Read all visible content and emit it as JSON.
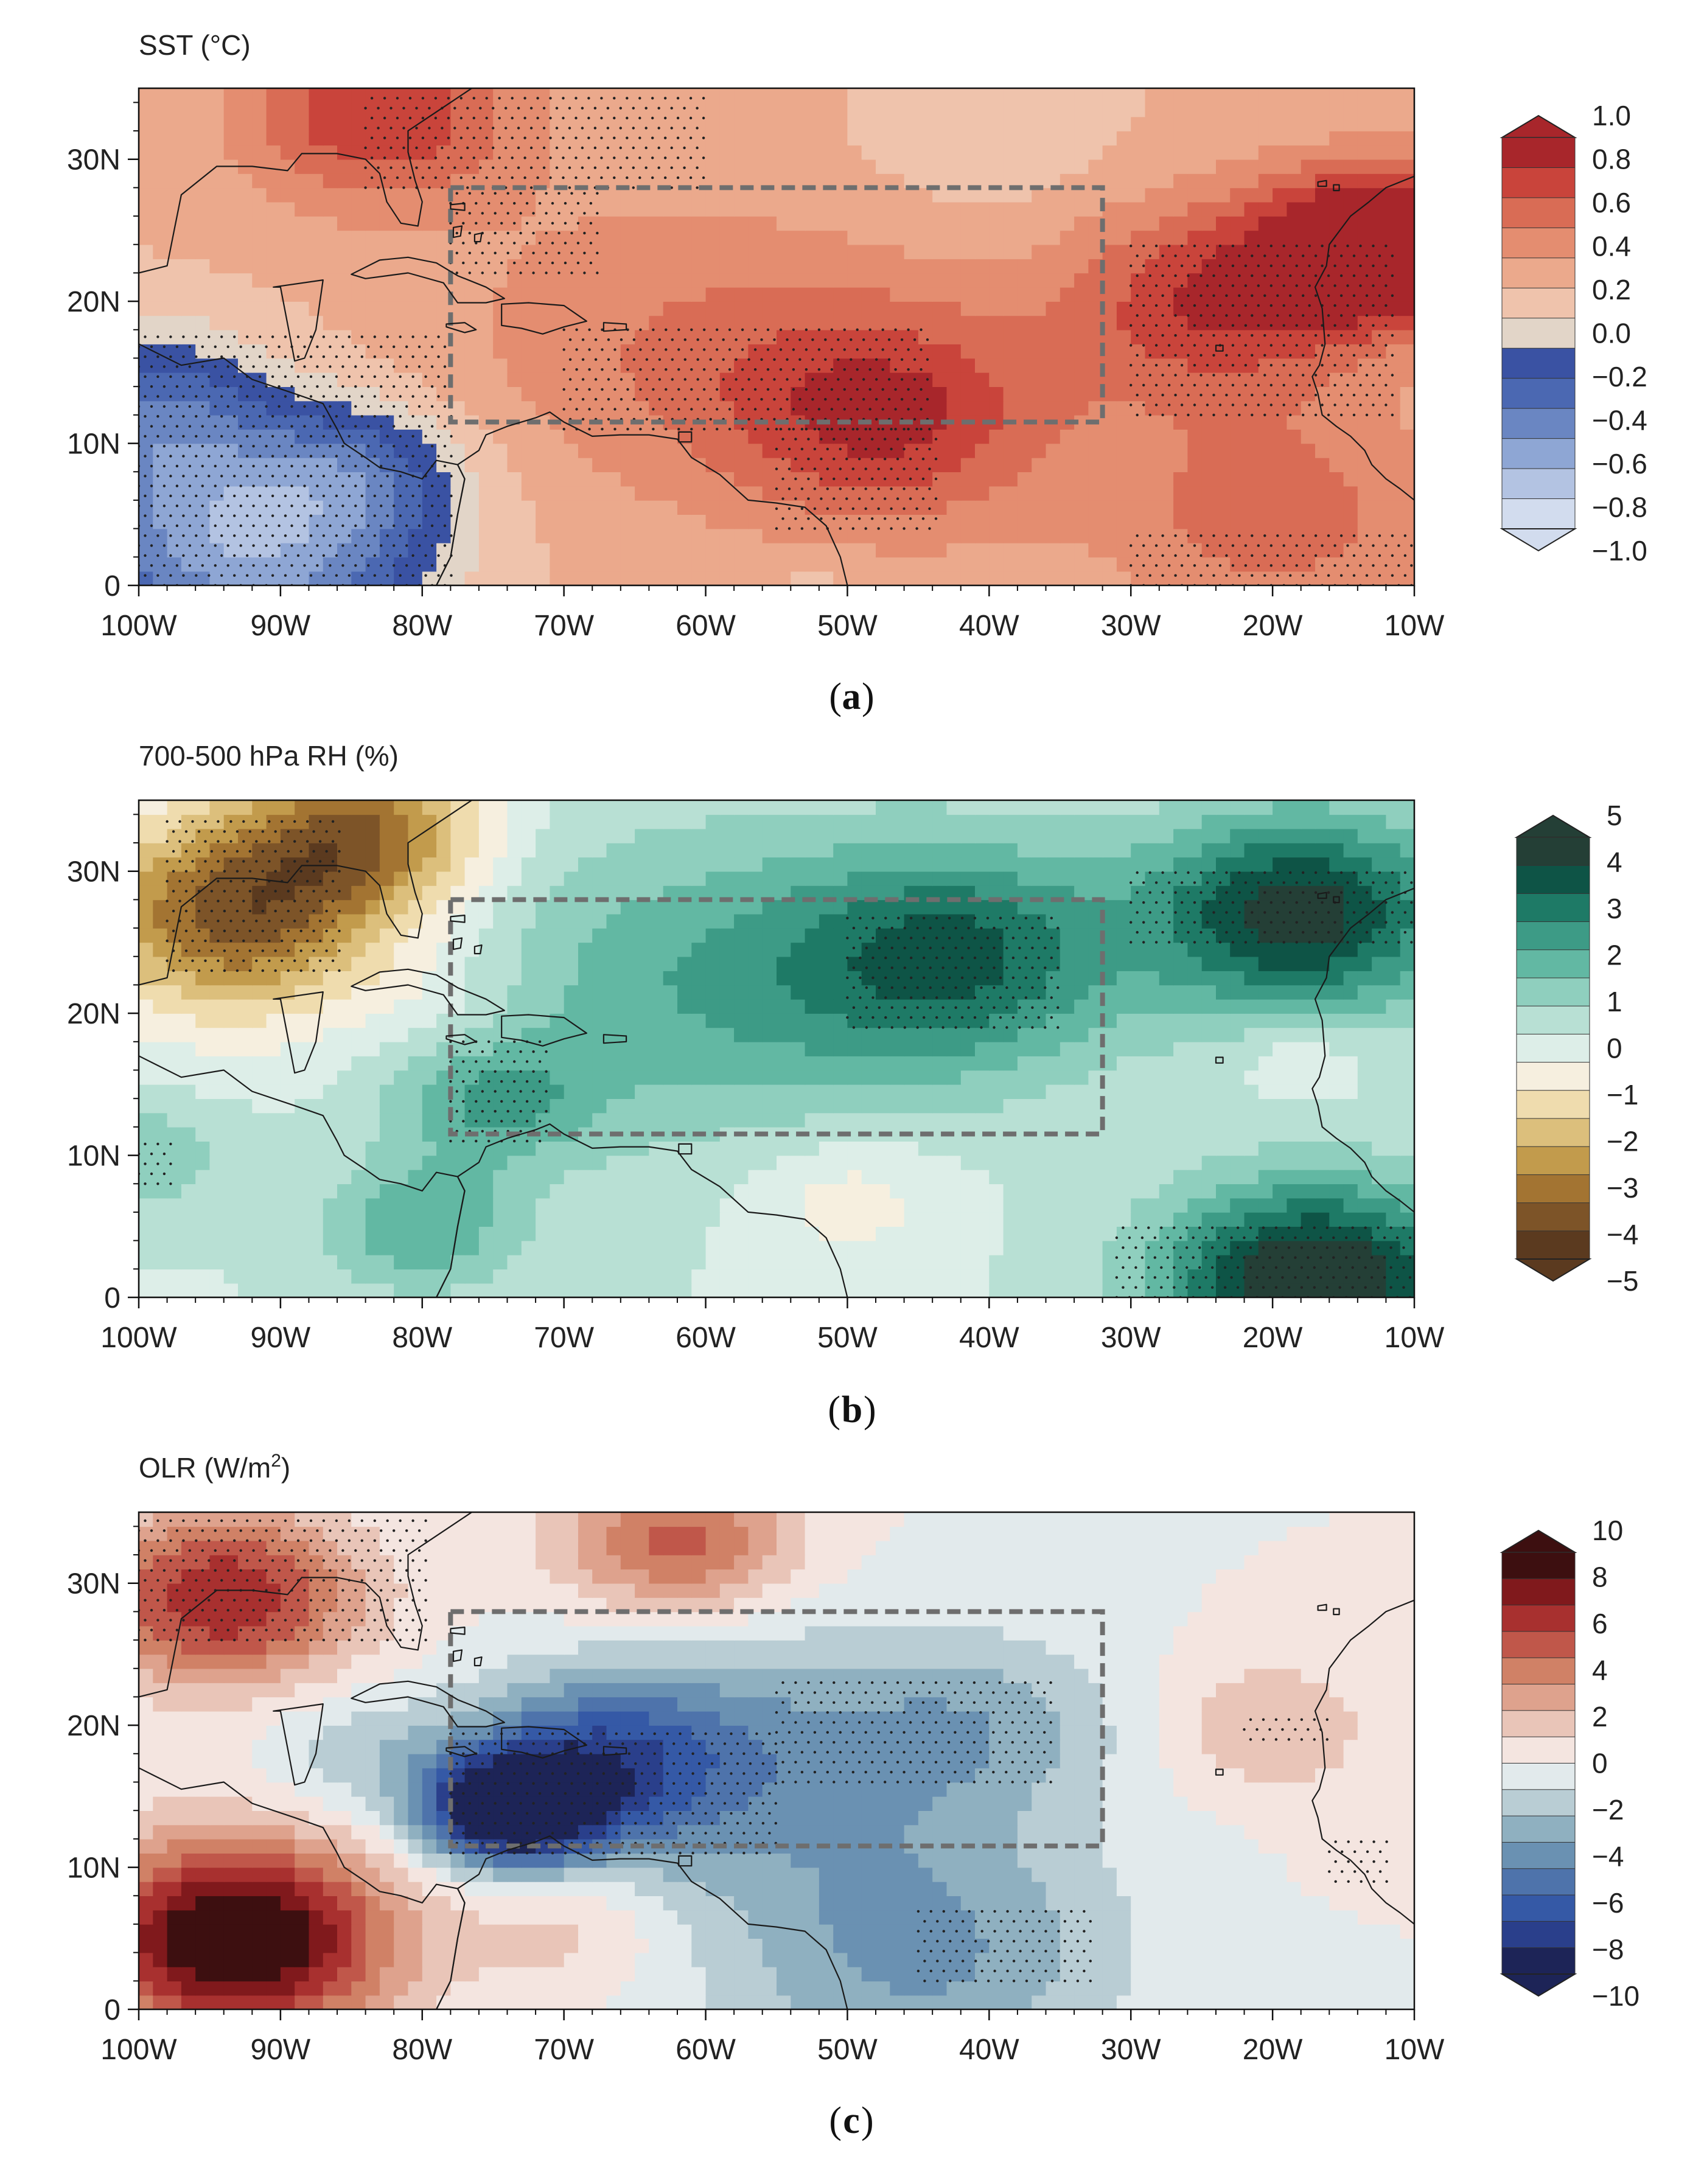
{
  "colors": {
    "sst_neg": [
      "#3a52a3",
      "#4b68b2",
      "#6a86c2",
      "#8ea6d4",
      "#b3c3e2",
      "#d2dcee"
    ],
    "sst_pos": [
      "#e2d5c8",
      "#efc3ac",
      "#eba98c",
      "#e48d70",
      "#d96c55",
      "#c9443b",
      "#a8262b"
    ],
    "rh_neg": [
      "#f6efdf",
      "#efdcae",
      "#dcbf7c",
      "#c29b4c",
      "#a37432",
      "#7d5428",
      "#5b3a1f"
    ],
    "rh_pos": [
      "#ddeee8",
      "#b8e0d4",
      "#8fcfbe",
      "#62b8a3",
      "#3d9b86",
      "#1e7a66",
      "#0e5446",
      "#243f36"
    ],
    "olr_neg": [
      "#e2eaec",
      "#b9cdd4",
      "#8fb0c0",
      "#6a91b2",
      "#4e73ab",
      "#3559a6",
      "#2a3f8b",
      "#1d2457"
    ],
    "olr_pos": [
      "#f4e5e0",
      "#e9c5b8",
      "#dea28d",
      "#d08166",
      "#c0574a",
      "#a8302f",
      "#80191c",
      "#3d0f10"
    ],
    "box": "#6e6e6e",
    "coast": "#1a1a1a",
    "stipple": "#222222"
  },
  "panels": [
    {
      "id": "a",
      "label": "a",
      "chart_data": {
        "type": "heatmap",
        "title": "SST (°C)",
        "variable": "SST",
        "units": "°C",
        "x_range": [
          -100,
          -10
        ],
        "y_range": [
          0,
          35
        ],
        "x_ticks": [
          "100W",
          "90W",
          "80W",
          "70W",
          "60W",
          "50W",
          "40W",
          "30W",
          "20W",
          "10W"
        ],
        "y_ticks": [
          "0",
          "10N",
          "20N",
          "30N"
        ],
        "colorbar_ticks": [
          "1.0",
          "0.8",
          "0.6",
          "0.4",
          "0.2",
          "0.0",
          "−0.2",
          "−0.4",
          "−0.6",
          "−0.8",
          "−1.0"
        ],
        "colorbar_range": [
          -1.0,
          1.0
        ],
        "box": {
          "lon": [
            -78,
            -32
          ],
          "lat": [
            11.5,
            28
          ]
        },
        "anomalies": [
          {
            "lon": -92,
            "lat": 3,
            "value": -0.95,
            "r": 10
          },
          {
            "lon": -100,
            "lat": 12,
            "value": -0.55,
            "r": 8
          },
          {
            "lon": -84,
            "lat": 8,
            "value": -0.35,
            "r": 6
          },
          {
            "lon": -83,
            "lat": 33,
            "value": 0.55,
            "r": 8
          },
          {
            "lon": -47,
            "lat": 12,
            "value": 0.55,
            "r": 10
          },
          {
            "lon": -62,
            "lat": 17,
            "value": 0.25,
            "r": 14
          },
          {
            "lon": -12,
            "lat": 24,
            "value": 0.95,
            "r": 7
          },
          {
            "lon": -24,
            "lat": 20,
            "value": 0.55,
            "r": 9
          },
          {
            "lon": -40,
            "lat": 32,
            "value": -0.15,
            "r": 7
          },
          {
            "lon": -20,
            "lat": 5,
            "value": 0.35,
            "r": 10
          },
          {
            "lon": -52,
            "lat": 1,
            "value": -0.1,
            "r": 3
          }
        ],
        "stipple_regions": [
          {
            "lon": [
              -100,
              -78
            ],
            "lat": [
              0,
              18
            ]
          },
          {
            "lon": [
              -84,
              -60
            ],
            "lat": [
              28,
              35
            ]
          },
          {
            "lon": [
              -78,
              -68
            ],
            "lat": [
              22,
              28
            ]
          },
          {
            "lon": [
              -70,
              -44
            ],
            "lat": [
              11,
              18
            ]
          },
          {
            "lon": [
              -55,
              -44
            ],
            "lat": [
              4,
              11
            ]
          },
          {
            "lon": [
              -30,
              -12
            ],
            "lat": [
              12,
              24
            ]
          },
          {
            "lon": [
              -30,
              -10
            ],
            "lat": [
              0,
              4
            ]
          }
        ]
      }
    },
    {
      "id": "b",
      "label": "b",
      "chart_data": {
        "type": "heatmap",
        "title": "700-500 hPa RH (%)",
        "variable": "RH",
        "units": "%",
        "x_range": [
          -100,
          -10
        ],
        "y_range": [
          0,
          35
        ],
        "x_ticks": [
          "100W",
          "90W",
          "80W",
          "70W",
          "60W",
          "50W",
          "40W",
          "30W",
          "20W",
          "10W"
        ],
        "y_ticks": [
          "0",
          "10N",
          "20N",
          "30N"
        ],
        "colorbar_ticks": [
          "5",
          "4",
          "3",
          "2",
          "1",
          "0",
          "−1",
          "−2",
          "−3",
          "−4",
          "−5"
        ],
        "colorbar_range": [
          -5,
          5
        ],
        "box": {
          "lon": [
            -78,
            -32
          ],
          "lat": [
            11.5,
            28
          ]
        },
        "anomalies": [
          {
            "lon": -93,
            "lat": 27,
            "value": -4.5,
            "r": 9
          },
          {
            "lon": -84,
            "lat": 33,
            "value": -3.5,
            "r": 7
          },
          {
            "lon": -78,
            "lat": 20,
            "value": -0.6,
            "r": 5
          },
          {
            "lon": -42,
            "lat": 24,
            "value": 3.0,
            "r": 10
          },
          {
            "lon": -60,
            "lat": 22,
            "value": 1.8,
            "r": 14
          },
          {
            "lon": -18,
            "lat": 27,
            "value": 4.2,
            "r": 9
          },
          {
            "lon": -17,
            "lat": 1,
            "value": 4.8,
            "r": 9
          },
          {
            "lon": -75,
            "lat": 14,
            "value": 1.8,
            "r": 6
          },
          {
            "lon": -80,
            "lat": 5,
            "value": 1.8,
            "r": 6
          },
          {
            "lon": -50,
            "lat": 7,
            "value": -1.0,
            "r": 6
          },
          {
            "lon": -18,
            "lat": 17,
            "value": -0.8,
            "r": 4
          },
          {
            "lon": -100,
            "lat": 10,
            "value": 1.2,
            "r": 5
          }
        ],
        "stipple_regions": [
          {
            "lon": [
              -98,
              -86
            ],
            "lat": [
              23,
              34
            ]
          },
          {
            "lon": [
              -78,
              -71
            ],
            "lat": [
              11,
              18
            ]
          },
          {
            "lon": [
              -50,
              -35
            ],
            "lat": [
              19,
              27
            ]
          },
          {
            "lon": [
              -30,
              -10
            ],
            "lat": [
              25,
              30
            ]
          },
          {
            "lon": [
              -31,
              -10
            ],
            "lat": [
              0,
              5
            ]
          },
          {
            "lon": [
              -100,
              -98
            ],
            "lat": [
              8,
              11
            ]
          }
        ]
      }
    },
    {
      "id": "c",
      "label": "c",
      "chart_data": {
        "type": "heatmap",
        "title": "OLR (W/m",
        "title_sup": "2",
        "title_end": ")",
        "variable": "OLR",
        "units": "W/m2",
        "x_range": [
          -100,
          -10
        ],
        "y_range": [
          0,
          35
        ],
        "x_ticks": [
          "100W",
          "90W",
          "80W",
          "70W",
          "60W",
          "50W",
          "40W",
          "30W",
          "20W",
          "10W"
        ],
        "y_ticks": [
          "0",
          "10N",
          "20N",
          "30N"
        ],
        "colorbar_ticks": [
          "10",
          "8",
          "6",
          "4",
          "2",
          "0",
          "−2",
          "−4",
          "−6",
          "−8",
          "−10"
        ],
        "colorbar_range": [
          -10,
          10
        ],
        "box": {
          "lon": [
            -78,
            -32
          ],
          "lat": [
            11.5,
            28
          ]
        },
        "anomalies": [
          {
            "lon": -74,
            "lat": 14,
            "value": -10.5,
            "r": 5
          },
          {
            "lon": -68,
            "lat": 17,
            "value": -6.5,
            "r": 8
          },
          {
            "lon": -55,
            "lat": 18,
            "value": -3.5,
            "r": 12
          },
          {
            "lon": -40,
            "lat": 20,
            "value": -2.5,
            "r": 8
          },
          {
            "lon": -45,
            "lat": 4,
            "value": -4.0,
            "r": 12
          },
          {
            "lon": -85,
            "lat": 18,
            "value": -2.0,
            "r": 6
          },
          {
            "lon": -93,
            "lat": 5,
            "value": 11.0,
            "r": 9
          },
          {
            "lon": -94,
            "lat": 29,
            "value": 7.5,
            "r": 8
          },
          {
            "lon": -62,
            "lat": 33,
            "value": 5.5,
            "r": 7
          },
          {
            "lon": -20,
            "lat": 20,
            "value": 2.5,
            "r": 6
          },
          {
            "lon": -70,
            "lat": 6,
            "value": 2.0,
            "r": 6
          },
          {
            "lon": -12,
            "lat": 12,
            "value": 1.0,
            "r": 4
          }
        ],
        "stipple_regions": [
          {
            "lon": [
              -100,
              -80
            ],
            "lat": [
              26,
              35
            ]
          },
          {
            "lon": [
              -78,
              -55
            ],
            "lat": [
              11,
              20
            ]
          },
          {
            "lon": [
              -55,
              -36
            ],
            "lat": [
              16,
              23
            ]
          },
          {
            "lon": [
              -45,
              -33
            ],
            "lat": [
              2,
              7
            ]
          },
          {
            "lon": [
              -22,
              -16
            ],
            "lat": [
              19,
              21
            ]
          },
          {
            "lon": [
              -16,
              -12
            ],
            "lat": [
              9,
              12
            ]
          }
        ]
      }
    }
  ]
}
